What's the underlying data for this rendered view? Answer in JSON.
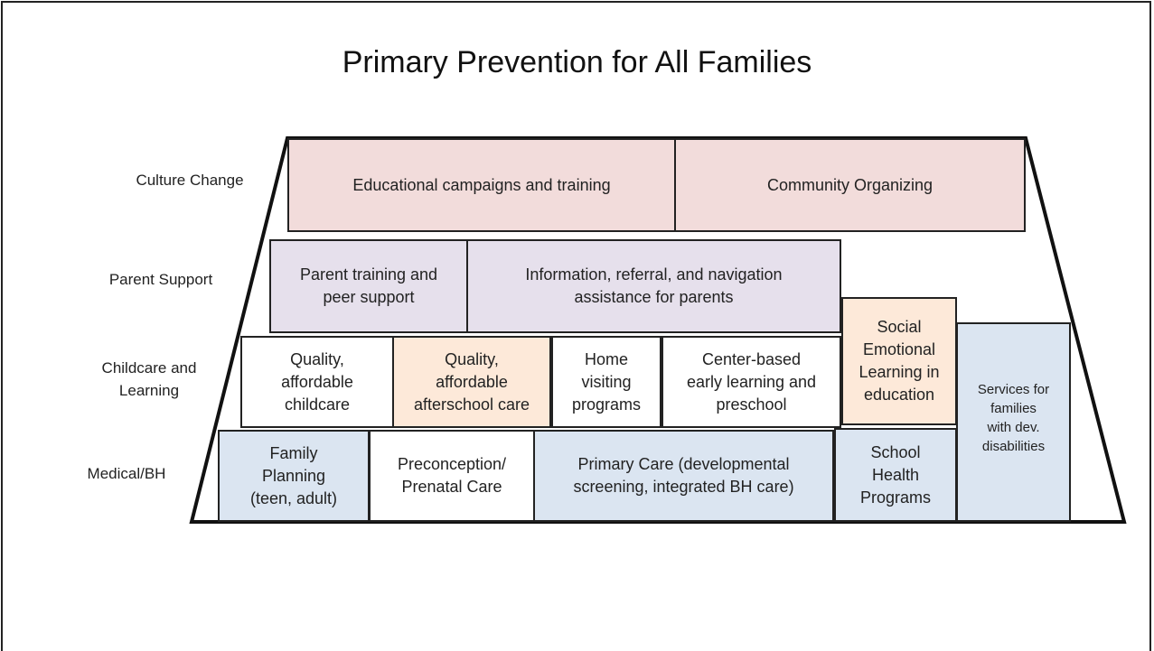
{
  "title": "Primary Prevention for All Families",
  "rows": [
    {
      "label": [
        "Culture Change"
      ]
    },
    {
      "label": [
        "Parent Support"
      ]
    },
    {
      "label": [
        "Childcare and",
        "Learning"
      ]
    },
    {
      "label": [
        "Medical/BH"
      ]
    }
  ],
  "boxes": [
    {
      "text": [
        "Educational campaigns and training"
      ],
      "color": "#f2dcdb"
    },
    {
      "text": [
        "Community Organizing"
      ],
      "color": "#f2dcdb"
    },
    {
      "text": [
        "Parent training and",
        "peer support"
      ],
      "color": "#e6e0ec"
    },
    {
      "text": [
        "Information, referral, and navigation",
        "assistance for parents"
      ],
      "color": "#e6e0ec"
    },
    {
      "text": [
        "Quality,",
        "affordable",
        "childcare"
      ],
      "color": "#ffffff"
    },
    {
      "text": [
        "Quality,",
        "affordable",
        "afterschool care"
      ],
      "color": "#fde9d9"
    },
    {
      "text": [
        "Home",
        "visiting",
        "programs"
      ],
      "color": "#ffffff"
    },
    {
      "text": [
        "Center-based",
        "early learning and",
        "preschool"
      ],
      "color": "#ffffff"
    },
    {
      "text": [
        "Social",
        "Emotional",
        "Learning in",
        "education"
      ],
      "color": "#fde9d9"
    },
    {
      "text": [
        "Services for",
        "families",
        "with dev.",
        "disabilities"
      ],
      "color": "#dbe5f1"
    },
    {
      "text": [
        "Family",
        "Planning",
        "(teen, adult)"
      ],
      "color": "#dbe5f1"
    },
    {
      "text": [
        "Preconception/",
        "Prenatal Care"
      ],
      "color": "#ffffff"
    },
    {
      "text": [
        "Primary Care (developmental",
        "screening, integrated BH care)"
      ],
      "color": "#dbe5f1"
    },
    {
      "text": [
        "School",
        "Health",
        "Programs"
      ],
      "color": "#dbe5f1"
    }
  ]
}
